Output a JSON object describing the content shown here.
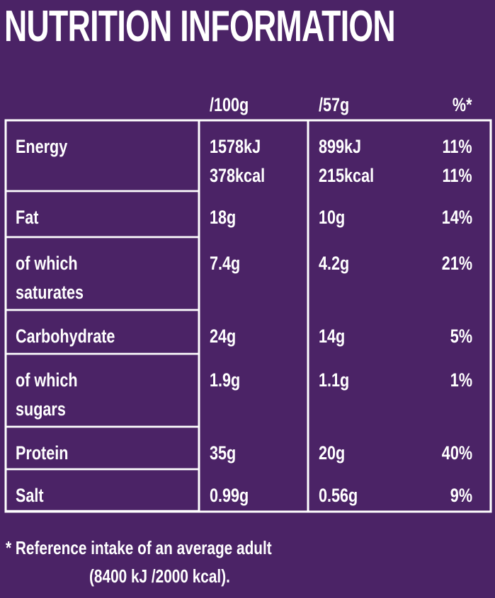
{
  "title": "NUTRITION INFORMATION",
  "header": {
    "per_100g": "/100g",
    "per_57g": "/57g",
    "ri": "%*"
  },
  "rows": [
    {
      "label": "Energy",
      "per_100g": [
        "1578kJ",
        "378kcal"
      ],
      "per_57g": [
        "899kJ",
        "215kcal"
      ],
      "ri": [
        "11%",
        "11%"
      ]
    },
    {
      "label": "Fat",
      "per_100g": "18g",
      "per_57g": "10g",
      "ri": "14%"
    },
    {
      "label": "of which saturates",
      "per_100g": "7.4g",
      "per_57g": "4.2g",
      "ri": "21%"
    },
    {
      "label": "Carbohydrate",
      "per_100g": "24g",
      "per_57g": "14g",
      "ri": "5%"
    },
    {
      "label": "of which sugars",
      "per_100g": "1.9g",
      "per_57g": "1.1g",
      "ri": "1%"
    },
    {
      "label": "Protein",
      "per_100g": "35g",
      "per_57g": "20g",
      "ri": "40%"
    },
    {
      "label": "Salt",
      "per_100g": "0.99g",
      "per_57g": "0.56g",
      "ri": "9%"
    }
  ],
  "footnote": [
    "* Reference intake of an average adult",
    "(8400 kJ /2000 kcal)."
  ]
}
